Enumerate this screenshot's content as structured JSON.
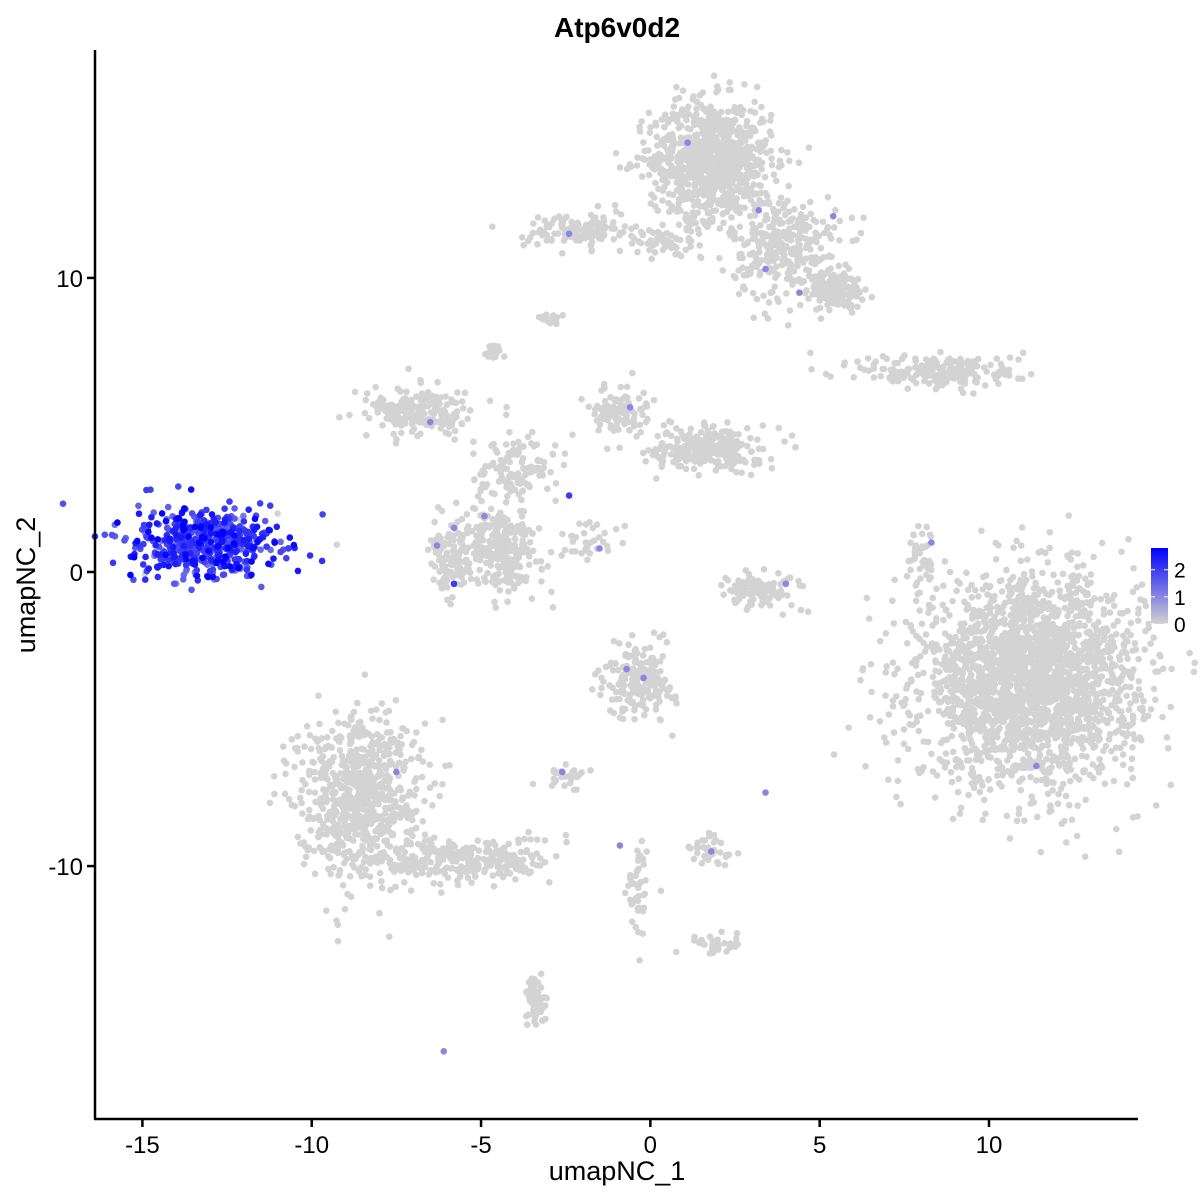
{
  "chart_data": {
    "type": "scatter",
    "title": "Atp6v0d2",
    "xlabel": "umapNC_1",
    "ylabel": "umapNC_2",
    "xlim": [
      -16.4,
      14.4
    ],
    "ylim": [
      -18.6,
      17.75
    ],
    "xticks": [
      -15,
      -10,
      -5,
      0,
      5,
      10
    ],
    "yticks": [
      -10,
      0,
      10
    ],
    "grid": false,
    "legend": {
      "placement": "right",
      "ticks": [
        0,
        1,
        2
      ],
      "range": [
        0,
        2.8
      ],
      "low_color": "#D3D3D3",
      "high_color": "#0000FF"
    },
    "clusters": [
      {
        "center": [
          -13.1,
          1.0
        ],
        "spread": [
          1.1,
          0.6
        ],
        "n": 520,
        "expression": 2.0
      },
      {
        "center": [
          1.8,
          14.0
        ],
        "spread": [
          0.9,
          1.0
        ],
        "n": 900,
        "expression": 0
      },
      {
        "center": [
          4.0,
          11.0
        ],
        "spread": [
          0.8,
          0.9
        ],
        "n": 300,
        "expression": 0
      },
      {
        "center": [
          5.5,
          9.6
        ],
        "spread": [
          0.4,
          0.3
        ],
        "n": 150,
        "expression": 0
      },
      {
        "center": [
          -2.1,
          11.6
        ],
        "spread": [
          0.8,
          0.3
        ],
        "n": 120,
        "expression": 0
      },
      {
        "center": [
          0.6,
          11.2
        ],
        "spread": [
          0.8,
          0.3
        ],
        "n": 60,
        "expression": 0
      },
      {
        "center": [
          11.2,
          -3.7
        ],
        "spread": [
          1.6,
          1.7
        ],
        "n": 2400,
        "expression": 0
      },
      {
        "center": [
          8.6,
          6.8
        ],
        "spread": [
          1.2,
          0.3
        ],
        "n": 200,
        "expression": 0
      },
      {
        "center": [
          -8.6,
          -7.6
        ],
        "spread": [
          0.9,
          1.4
        ],
        "n": 750,
        "expression": 0
      },
      {
        "center": [
          -5.3,
          -9.8
        ],
        "spread": [
          1.2,
          0.4
        ],
        "n": 250,
        "expression": 0
      },
      {
        "center": [
          -6.8,
          5.4
        ],
        "spread": [
          0.8,
          0.4
        ],
        "n": 200,
        "expression": 0
      },
      {
        "center": [
          -4.5,
          0.8
        ],
        "spread": [
          0.6,
          0.7
        ],
        "n": 300,
        "expression": 0
      },
      {
        "center": [
          -5.9,
          0.3
        ],
        "spread": [
          0.3,
          0.6
        ],
        "n": 100,
        "expression": 0
      },
      {
        "center": [
          -4.0,
          3.5
        ],
        "spread": [
          0.6,
          0.6
        ],
        "n": 120,
        "expression": 0
      },
      {
        "center": [
          1.7,
          4.2
        ],
        "spread": [
          0.8,
          0.4
        ],
        "n": 250,
        "expression": 0
      },
      {
        "center": [
          -0.9,
          5.5
        ],
        "spread": [
          0.4,
          0.4
        ],
        "n": 100,
        "expression": 0
      },
      {
        "center": [
          -0.3,
          -3.7
        ],
        "spread": [
          0.5,
          0.6
        ],
        "n": 200,
        "expression": 0
      },
      {
        "center": [
          3.2,
          -0.6
        ],
        "spread": [
          0.6,
          0.3
        ],
        "n": 120,
        "expression": 0
      },
      {
        "center": [
          1.8,
          -9.5
        ],
        "spread": [
          0.3,
          0.3
        ],
        "n": 40,
        "expression": 0
      },
      {
        "center": [
          -3.4,
          -14.6
        ],
        "spread": [
          0.2,
          0.4
        ],
        "n": 60,
        "expression": 0
      },
      {
        "center": [
          2.0,
          -12.6
        ],
        "spread": [
          0.4,
          0.2
        ],
        "n": 30,
        "expression": 0
      },
      {
        "center": [
          8.0,
          0.4
        ],
        "spread": [
          0.2,
          0.6
        ],
        "n": 40,
        "expression": 0
      },
      {
        "center": [
          -2.5,
          -6.9
        ],
        "spread": [
          0.3,
          0.2
        ],
        "n": 30,
        "expression": 0
      },
      {
        "center": [
          -0.3,
          -10.9
        ],
        "spread": [
          0.2,
          0.8
        ],
        "n": 40,
        "expression": 0
      },
      {
        "center": [
          -4.6,
          7.4
        ],
        "spread": [
          0.1,
          0.2
        ],
        "n": 20,
        "expression": 0
      },
      {
        "center": [
          -3.0,
          8.6
        ],
        "spread": [
          0.2,
          0.1
        ],
        "n": 15,
        "expression": 0
      },
      {
        "center": [
          -1.7,
          1.0
        ],
        "spread": [
          0.5,
          0.4
        ],
        "n": 30,
        "expression": 0
      }
    ],
    "expressing_points": [
      [
        1.1,
        14.6,
        1
      ],
      [
        3.2,
        12.3,
        1
      ],
      [
        5.4,
        12.1,
        1
      ],
      [
        3.4,
        10.3,
        1
      ],
      [
        4.4,
        9.5,
        1
      ],
      [
        -2.4,
        11.5,
        1
      ],
      [
        -6.5,
        5.1,
        1
      ],
      [
        -0.6,
        5.6,
        1
      ],
      [
        -2.4,
        2.6,
        2
      ],
      [
        -4.9,
        1.9,
        1
      ],
      [
        -5.8,
        1.5,
        1
      ],
      [
        -6.3,
        0.9,
        1
      ],
      [
        -5.8,
        -0.4,
        2
      ],
      [
        -1.5,
        0.8,
        1
      ],
      [
        4.0,
        -0.4,
        1
      ],
      [
        8.3,
        1.0,
        1
      ],
      [
        -0.7,
        -3.3,
        1
      ],
      [
        -0.2,
        -3.6,
        1
      ],
      [
        11.4,
        -6.6,
        1
      ],
      [
        -7.5,
        -6.8,
        1
      ],
      [
        -2.6,
        -6.8,
        1
      ],
      [
        3.4,
        -7.5,
        1
      ],
      [
        1.8,
        -9.5,
        1
      ],
      [
        -0.9,
        -9.3,
        1
      ],
      [
        -6.1,
        -16.3,
        1
      ]
    ]
  }
}
